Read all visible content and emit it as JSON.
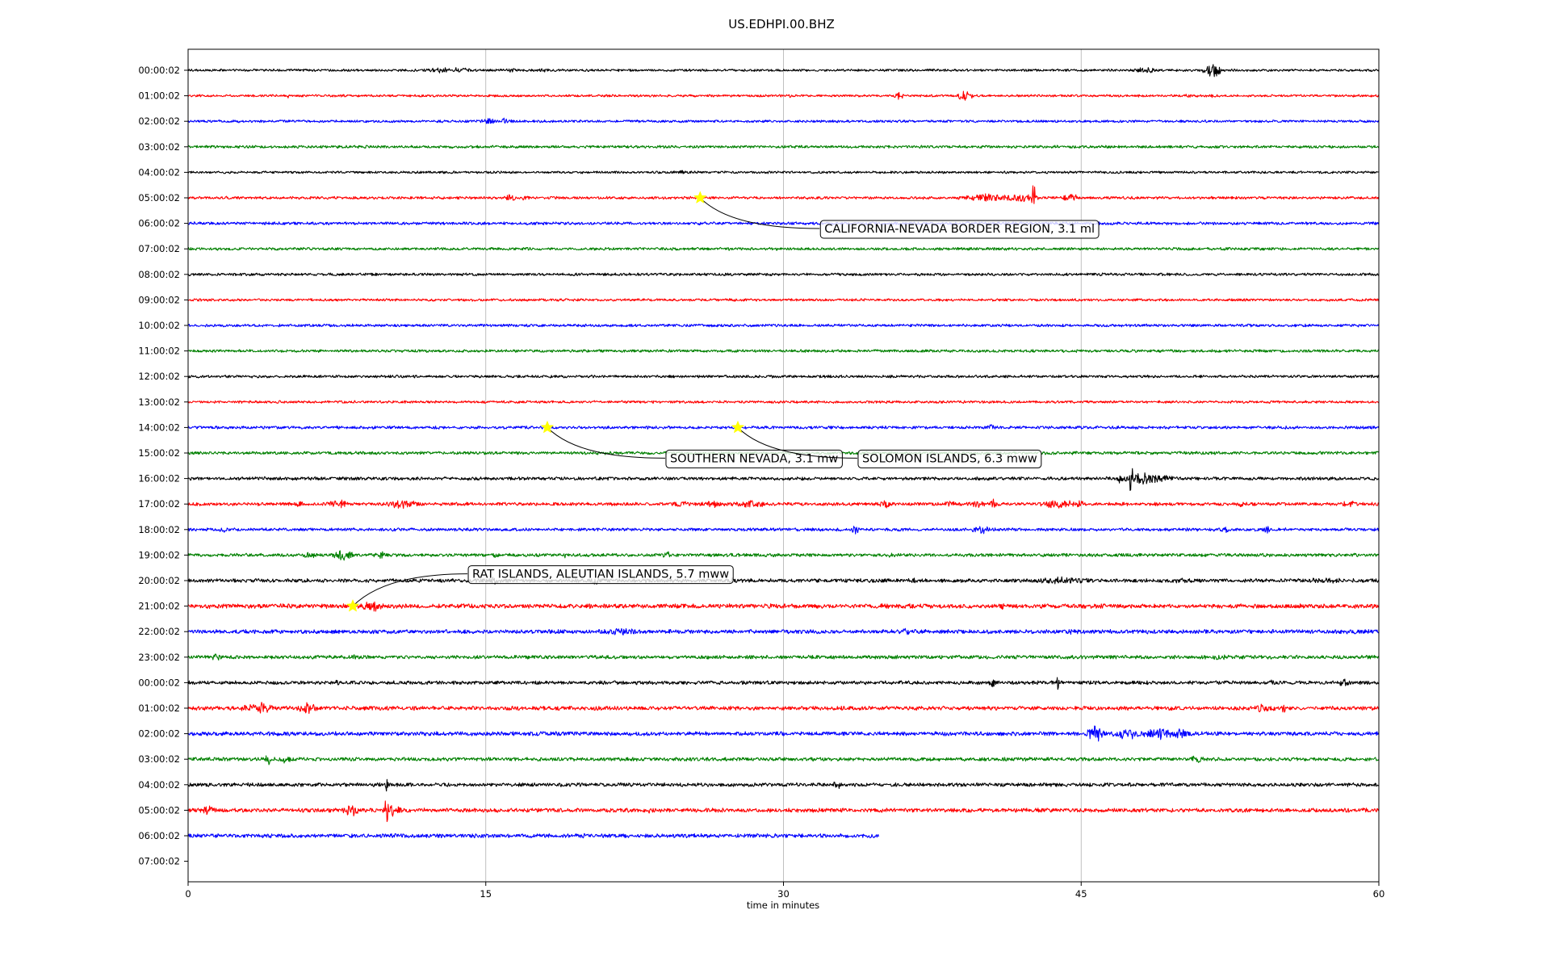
{
  "chart_data": {
    "type": "line",
    "title": "US.EDHPI.00.BHZ",
    "xlabel": "time in minutes",
    "xlim": [
      0,
      60
    ],
    "x_ticks": [
      0,
      15,
      30,
      45,
      60
    ],
    "x_tick_labels": [
      "0",
      "15",
      "30",
      "45",
      "60"
    ],
    "grid": "vertical lines at x ticks",
    "row_labels": [
      "00:00:02",
      "01:00:02",
      "02:00:02",
      "03:00:02",
      "04:00:02",
      "05:00:02",
      "06:00:02",
      "07:00:02",
      "08:00:02",
      "09:00:02",
      "10:00:02",
      "11:00:02",
      "12:00:02",
      "13:00:02",
      "14:00:02",
      "15:00:02",
      "16:00:02",
      "17:00:02",
      "18:00:02",
      "19:00:02",
      "20:00:02",
      "21:00:02",
      "22:00:02",
      "23:00:02",
      "00:00:02",
      "01:00:02",
      "02:00:02",
      "03:00:02",
      "04:00:02",
      "05:00:02",
      "06:00:02",
      "07:00:02"
    ],
    "row_colors": [
      "#000000",
      "#ff0000",
      "#0000ff",
      "#008000"
    ],
    "traces": [
      {
        "row": 0,
        "end_min": 60,
        "noise": 1.3,
        "bursts": [
          [
            12.8,
            1.0,
            4
          ],
          [
            13.6,
            0.8,
            4
          ],
          [
            16.2,
            0.6,
            4
          ],
          [
            17.9,
            0.4,
            3
          ],
          [
            48.2,
            0.7,
            5
          ],
          [
            51.6,
            0.5,
            11
          ]
        ]
      },
      {
        "row": 1,
        "end_min": 60,
        "noise": 1.3,
        "bursts": [
          [
            5.0,
            0.3,
            3
          ],
          [
            30.3,
            0.3,
            3
          ],
          [
            35.8,
            0.3,
            6
          ],
          [
            39.1,
            0.4,
            9
          ],
          [
            50.4,
            0.3,
            3
          ],
          [
            51.6,
            0.3,
            3
          ]
        ]
      },
      {
        "row": 2,
        "end_min": 60,
        "noise": 1.4,
        "bursts": [
          [
            15.1,
            0.5,
            5
          ],
          [
            16.0,
            0.4,
            5
          ]
        ]
      },
      {
        "row": 3,
        "end_min": 60,
        "noise": 1.5,
        "bursts": []
      },
      {
        "row": 4,
        "end_min": 60,
        "noise": 1.3,
        "bursts": [
          [
            25.0,
            0.8,
            3
          ]
        ]
      },
      {
        "row": 5,
        "end_min": 60,
        "noise": 1.5,
        "bursts": [
          [
            16.2,
            0.3,
            6
          ],
          [
            17.0,
            0.3,
            4
          ],
          [
            40.3,
            1.5,
            6
          ],
          [
            42.6,
            0.1,
            28
          ],
          [
            44.5,
            0.4,
            8
          ],
          [
            42.0,
            1.0,
            6
          ]
        ]
      },
      {
        "row": 6,
        "end_min": 60,
        "noise": 1.6,
        "bursts": []
      },
      {
        "row": 7,
        "end_min": 60,
        "noise": 1.5,
        "bursts": []
      },
      {
        "row": 8,
        "end_min": 60,
        "noise": 1.5,
        "bursts": []
      },
      {
        "row": 9,
        "end_min": 60,
        "noise": 1.4,
        "bursts": []
      },
      {
        "row": 10,
        "end_min": 60,
        "noise": 1.5,
        "bursts": []
      },
      {
        "row": 11,
        "end_min": 60,
        "noise": 1.5,
        "bursts": []
      },
      {
        "row": 12,
        "end_min": 60,
        "noise": 1.5,
        "bursts": []
      },
      {
        "row": 13,
        "end_min": 60,
        "noise": 1.4,
        "bursts": []
      },
      {
        "row": 14,
        "end_min": 60,
        "noise": 1.6,
        "bursts": [
          [
            40.5,
            0.3,
            5
          ]
        ]
      },
      {
        "row": 15,
        "end_min": 60,
        "noise": 1.7,
        "bursts": []
      },
      {
        "row": 16,
        "end_min": 60,
        "noise": 1.8,
        "bursts": [
          [
            46.9,
            0.3,
            7
          ],
          [
            47.5,
            0.1,
            38
          ],
          [
            48.3,
            1.3,
            9
          ]
        ]
      },
      {
        "row": 17,
        "end_min": 60,
        "noise": 1.8,
        "bursts": [
          [
            5.6,
            0.3,
            6
          ],
          [
            7.6,
            0.7,
            6
          ],
          [
            10.8,
            0.8,
            7
          ],
          [
            24.8,
            0.6,
            5
          ],
          [
            26.5,
            0.8,
            5
          ],
          [
            28.3,
            1.0,
            6
          ],
          [
            35.1,
            0.5,
            6
          ],
          [
            38.4,
            0.4,
            5
          ],
          [
            39.8,
            0.5,
            6
          ],
          [
            40.6,
            0.3,
            7
          ],
          [
            43.9,
            1.0,
            7
          ],
          [
            44.9,
            0.3,
            6
          ],
          [
            53.1,
            0.3,
            5
          ],
          [
            58.5,
            0.8,
            5
          ]
        ]
      },
      {
        "row": 18,
        "end_min": 60,
        "noise": 1.7,
        "bursts": [
          [
            1.8,
            0.3,
            5
          ],
          [
            33.6,
            0.3,
            6
          ],
          [
            40.0,
            0.6,
            6
          ],
          [
            52.3,
            0.3,
            6
          ],
          [
            54.4,
            0.3,
            5
          ]
        ]
      },
      {
        "row": 19,
        "end_min": 60,
        "noise": 1.8,
        "bursts": [
          [
            6.1,
            0.4,
            6
          ],
          [
            7.8,
            0.6,
            8
          ],
          [
            9.7,
            0.4,
            6
          ],
          [
            15.5,
            0.3,
            4
          ],
          [
            19.0,
            0.2,
            4
          ],
          [
            24.2,
            0.4,
            5
          ],
          [
            35.4,
            0.3,
            4
          ]
        ]
      },
      {
        "row": 20,
        "end_min": 60,
        "noise": 2.0,
        "bursts": [
          [
            15.4,
            0.3,
            7
          ],
          [
            20.5,
            0.6,
            5
          ],
          [
            27.5,
            0.4,
            5
          ],
          [
            36.6,
            0.2,
            5
          ],
          [
            44.0,
            2.5,
            5
          ],
          [
            50.0,
            1.5,
            4
          ],
          [
            57.0,
            2.5,
            4
          ]
        ]
      },
      {
        "row": 21,
        "end_min": 60,
        "noise": 2.4,
        "bursts": [
          [
            9.0,
            1.2,
            6
          ],
          [
            9.4,
            0.1,
            14
          ],
          [
            41.0,
            0.3,
            5
          ]
        ]
      },
      {
        "row": 22,
        "end_min": 60,
        "noise": 2.2,
        "bursts": [
          [
            21.9,
            1.0,
            6
          ],
          [
            36.3,
            0.5,
            6
          ],
          [
            44.5,
            0.4,
            5
          ],
          [
            53.5,
            0.5,
            4
          ]
        ]
      },
      {
        "row": 23,
        "end_min": 60,
        "noise": 2.0,
        "bursts": [
          [
            1.4,
            0.3,
            6
          ],
          [
            8.3,
            0.3,
            4
          ],
          [
            52.0,
            1.0,
            4
          ]
        ]
      },
      {
        "row": 24,
        "end_min": 60,
        "noise": 2.0,
        "bursts": [
          [
            7.5,
            0.3,
            4
          ],
          [
            40.5,
            0.2,
            8
          ],
          [
            43.8,
            0.1,
            12
          ],
          [
            54.6,
            0.2,
            5
          ],
          [
            58.3,
            0.4,
            7
          ]
        ]
      },
      {
        "row": 25,
        "end_min": 60,
        "noise": 2.2,
        "bursts": [
          [
            3.6,
            1.0,
            8
          ],
          [
            6.0,
            0.6,
            9
          ],
          [
            54.2,
            0.6,
            8
          ],
          [
            55.2,
            0.3,
            7
          ]
        ]
      },
      {
        "row": 26,
        "end_min": 60,
        "noise": 2.2,
        "bursts": [
          [
            45.7,
            0.5,
            13
          ],
          [
            47.3,
            0.8,
            9
          ],
          [
            49.0,
            1.2,
            8
          ],
          [
            50.0,
            0.4,
            8
          ]
        ]
      },
      {
        "row": 27,
        "end_min": 60,
        "noise": 2.0,
        "bursts": [
          [
            4.1,
            0.3,
            8
          ],
          [
            4.9,
            0.4,
            6
          ],
          [
            50.8,
            0.6,
            5
          ]
        ]
      },
      {
        "row": 28,
        "end_min": 60,
        "noise": 2.0,
        "bursts": [
          [
            10.0,
            0.1,
            9
          ],
          [
            32.7,
            0.2,
            8
          ]
        ]
      },
      {
        "row": 29,
        "end_min": 60,
        "noise": 2.2,
        "bursts": [
          [
            1.0,
            0.5,
            7
          ],
          [
            8.3,
            0.6,
            9
          ],
          [
            10.0,
            0.1,
            30
          ],
          [
            10.3,
            0.5,
            10
          ],
          [
            23.3,
            0.4,
            5
          ]
        ]
      },
      {
        "row": 30,
        "end_min": 34.8,
        "noise": 2.2,
        "bursts": []
      }
    ],
    "events": [
      {
        "row": 5,
        "x": 25.8,
        "label": "CALIFORNIA-NEVADA BORDER REGION, 3.1 ml"
      },
      {
        "row": 14,
        "x": 18.1,
        "label": "SOUTHERN NEVADA, 3.1 mw"
      },
      {
        "row": 14,
        "x": 27.7,
        "label": "SOLOMON ISLANDS, 6.3 mww"
      },
      {
        "row": 21,
        "x": 8.3,
        "label": "RAT ISLANDS, ALEUTIAN ISLANDS, 5.7 mww"
      }
    ]
  }
}
